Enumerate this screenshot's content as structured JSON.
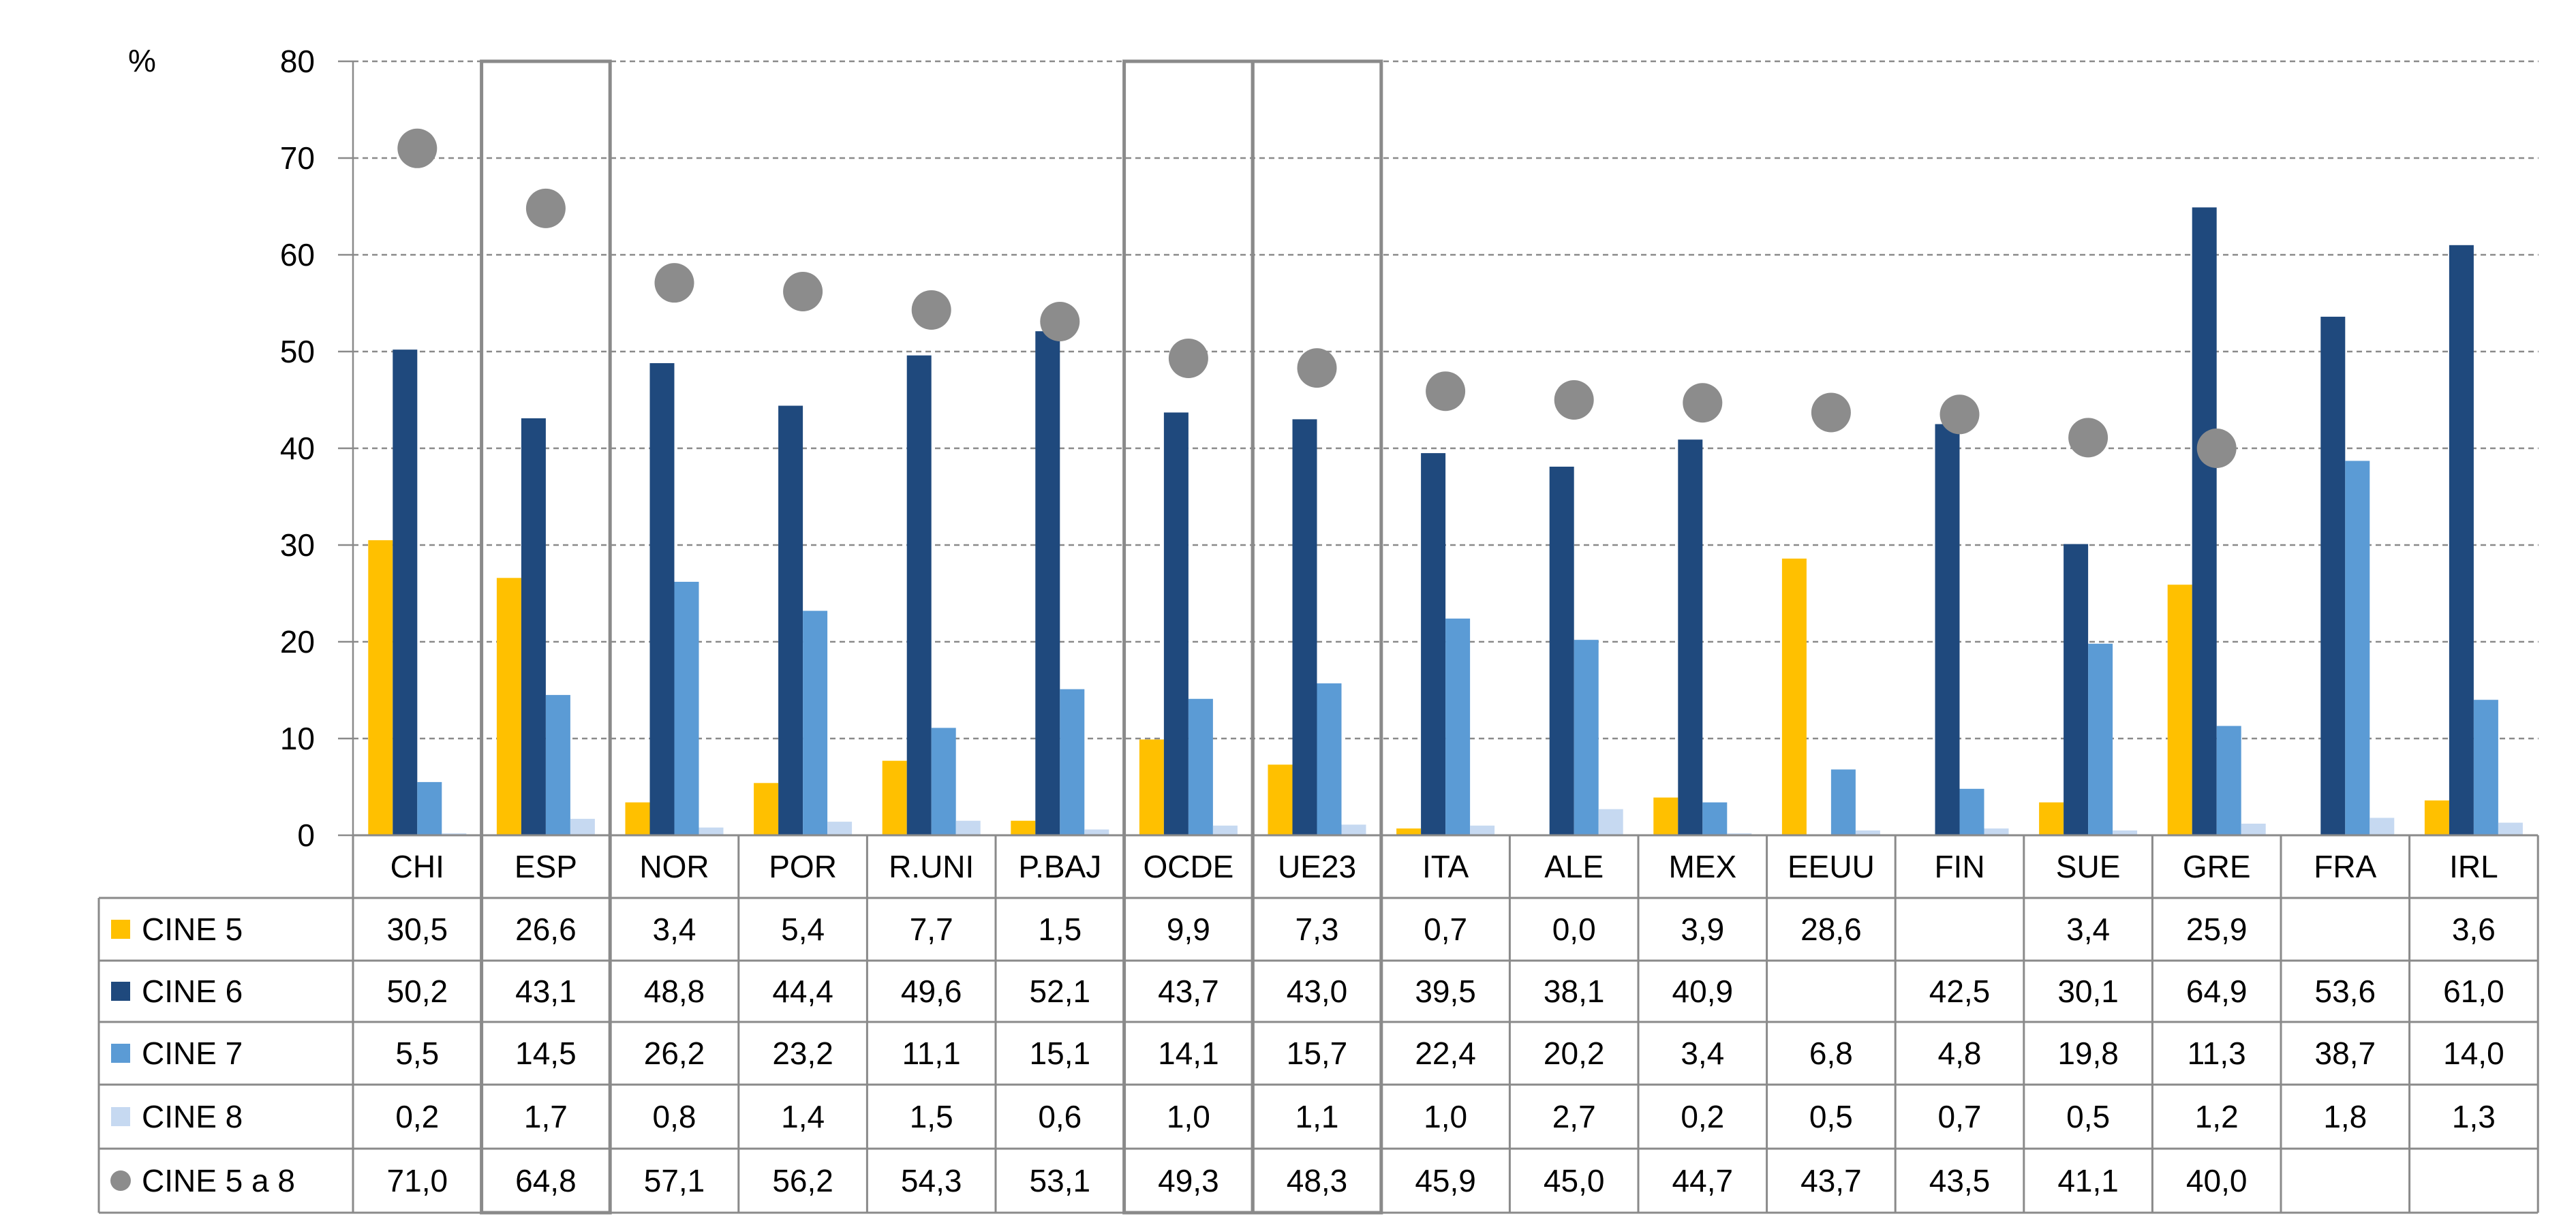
{
  "chart_data": {
    "type": "bar",
    "unit_label": "%",
    "ylim": [
      0,
      80
    ],
    "yticks": [
      0,
      10,
      20,
      30,
      40,
      50,
      60,
      70,
      80
    ],
    "grid": true,
    "categories": [
      "CHI",
      "ESP",
      "NOR",
      "POR",
      "R.UNI",
      "P.BAJ",
      "OCDE",
      "UE23",
      "ITA",
      "ALE",
      "MEX",
      "EEUU",
      "FIN",
      "SUE",
      "GRE",
      "FRA",
      "IRL"
    ],
    "highlighted_categories": [
      "ESP",
      "OCDE",
      "UE23"
    ],
    "series": [
      {
        "name": "CINE 5",
        "kind": "bar",
        "color": "#FFC000",
        "values": [
          30.5,
          26.6,
          3.4,
          5.4,
          7.7,
          1.5,
          9.9,
          7.3,
          0.7,
          0.0,
          3.9,
          28.6,
          null,
          3.4,
          25.9,
          null,
          3.6
        ],
        "labels": [
          "30,5",
          "26,6",
          "3,4",
          "5,4",
          "7,7",
          "1,5",
          "9,9",
          "7,3",
          "0,7",
          "0,0",
          "3,9",
          "28,6",
          "",
          "3,4",
          "25,9",
          "",
          "3,6"
        ]
      },
      {
        "name": "CINE 6",
        "kind": "bar",
        "color": "#1F497D",
        "values": [
          50.2,
          43.1,
          48.8,
          44.4,
          49.6,
          52.1,
          43.7,
          43.0,
          39.5,
          38.1,
          40.9,
          null,
          42.5,
          30.1,
          64.9,
          53.6,
          61.0
        ],
        "labels": [
          "50,2",
          "43,1",
          "48,8",
          "44,4",
          "49,6",
          "52,1",
          "43,7",
          "43,0",
          "39,5",
          "38,1",
          "40,9",
          "",
          "42,5",
          "30,1",
          "64,9",
          "53,6",
          "61,0"
        ]
      },
      {
        "name": "CINE 7",
        "kind": "bar",
        "color": "#5B9BD5",
        "values": [
          5.5,
          14.5,
          26.2,
          23.2,
          11.1,
          15.1,
          14.1,
          15.7,
          22.4,
          20.2,
          3.4,
          6.8,
          4.8,
          19.8,
          11.3,
          38.7,
          14.0
        ],
        "labels": [
          "5,5",
          "14,5",
          "26,2",
          "23,2",
          "11,1",
          "15,1",
          "14,1",
          "15,7",
          "22,4",
          "20,2",
          "3,4",
          "6,8",
          "4,8",
          "19,8",
          "11,3",
          "38,7",
          "14,0"
        ]
      },
      {
        "name": "CINE 8",
        "kind": "bar",
        "color": "#C6D9F1",
        "values": [
          0.2,
          1.7,
          0.8,
          1.4,
          1.5,
          0.6,
          1.0,
          1.1,
          1.0,
          2.7,
          0.2,
          0.5,
          0.7,
          0.5,
          1.2,
          1.8,
          1.3
        ],
        "labels": [
          "0,2",
          "1,7",
          "0,8",
          "1,4",
          "1,5",
          "0,6",
          "1,0",
          "1,1",
          "1,0",
          "2,7",
          "0,2",
          "0,5",
          "0,7",
          "0,5",
          "1,2",
          "1,8",
          "1,3"
        ]
      },
      {
        "name": "CINE 5 a 8",
        "kind": "marker",
        "color": "#8C8C8C",
        "values": [
          71.0,
          64.8,
          57.1,
          56.2,
          54.3,
          53.1,
          49.3,
          48.3,
          45.9,
          45.0,
          44.7,
          43.7,
          43.5,
          41.1,
          40.0,
          null,
          null
        ],
        "labels": [
          "71,0",
          "64,8",
          "57,1",
          "56,2",
          "54,3",
          "53,1",
          "49,3",
          "48,3",
          "45,9",
          "45,0",
          "44,7",
          "43,7",
          "43,5",
          "41,1",
          "40,0",
          "",
          ""
        ]
      }
    ]
  }
}
